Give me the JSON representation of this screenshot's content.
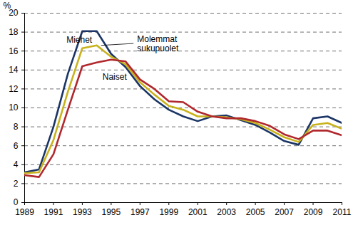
{
  "chart_data": {
    "type": "line",
    "x": [
      1989,
      1990,
      1991,
      1992,
      1993,
      1994,
      1995,
      1996,
      1997,
      1998,
      1999,
      2000,
      2001,
      2002,
      2003,
      2004,
      2005,
      2006,
      2007,
      2008,
      2009,
      2010,
      2011
    ],
    "series": [
      {
        "name": "Miehet",
        "color": "#1b3566",
        "values": [
          3.2,
          3.5,
          8.0,
          13.6,
          18.1,
          18.1,
          15.7,
          14.3,
          12.3,
          10.9,
          9.8,
          9.1,
          8.6,
          9.1,
          9.2,
          8.7,
          8.2,
          7.4,
          6.5,
          6.1,
          8.9,
          9.1,
          8.4
        ]
      },
      {
        "name": "Molemmat sukupuolet",
        "color": "#c8b21c",
        "values": [
          3.1,
          3.2,
          6.6,
          11.7,
          16.3,
          16.6,
          15.4,
          14.6,
          12.7,
          11.4,
          10.2,
          9.8,
          9.1,
          9.1,
          9.0,
          8.8,
          8.4,
          7.7,
          6.9,
          6.4,
          8.2,
          8.4,
          7.8
        ]
      },
      {
        "name": "Naiset",
        "color": "#b0282d",
        "values": [
          2.9,
          2.7,
          5.1,
          9.8,
          14.4,
          14.8,
          15.1,
          14.9,
          13.0,
          12.0,
          10.7,
          10.6,
          9.6,
          9.1,
          8.9,
          8.9,
          8.6,
          8.1,
          7.2,
          6.7,
          7.6,
          7.6,
          7.1
        ]
      }
    ],
    "annotations": [
      {
        "text": "Miehet",
        "x": 1991.9,
        "y": 17.2
      },
      {
        "text": "Molemmat\nsukupuolet",
        "x": 1996.8,
        "y": 16.8,
        "arrow_to": {
          "x": 1994.3,
          "y": 16.6
        }
      },
      {
        "text": "Naiset",
        "x": 1994.4,
        "y": 13.3
      }
    ],
    "y_label": "%",
    "xlim": [
      1989,
      2011
    ],
    "xticks": [
      1989,
      1991,
      1993,
      1995,
      1997,
      1999,
      2001,
      2003,
      2005,
      2007,
      2009,
      2011
    ],
    "ylim": [
      0,
      20
    ],
    "yticks": [
      0,
      2,
      4,
      6,
      8,
      10,
      12,
      14,
      16,
      18,
      20
    ],
    "grid": true
  }
}
